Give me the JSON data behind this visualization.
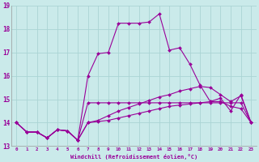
{
  "xlabel": "Windchill (Refroidissement éolien,°C)",
  "background_color": "#caeaea",
  "grid_color": "#aad4d4",
  "line_color": "#990099",
  "xlim": [
    -0.5,
    23.5
  ],
  "ylim": [
    13.0,
    19.0
  ],
  "xticks": [
    0,
    1,
    2,
    3,
    4,
    5,
    6,
    7,
    8,
    9,
    10,
    11,
    12,
    13,
    14,
    15,
    16,
    17,
    18,
    19,
    20,
    21,
    22,
    23
  ],
  "yticks": [
    13,
    14,
    15,
    16,
    17,
    18,
    19
  ],
  "series": [
    [
      14.0,
      13.6,
      13.6,
      13.35,
      13.7,
      13.65,
      13.25,
      14.85,
      14.85,
      14.85,
      14.85,
      14.85,
      14.85,
      14.85,
      14.85,
      14.85,
      14.85,
      14.85,
      14.85,
      14.85,
      14.85,
      14.85,
      14.85,
      14.0
    ],
    [
      14.0,
      13.6,
      13.6,
      13.35,
      13.7,
      13.65,
      13.25,
      14.0,
      14.05,
      14.1,
      14.2,
      14.3,
      14.4,
      14.5,
      14.6,
      14.7,
      14.75,
      14.8,
      14.85,
      14.9,
      14.9,
      14.7,
      14.6,
      14.0
    ],
    [
      14.0,
      13.6,
      13.6,
      13.35,
      13.7,
      13.65,
      13.25,
      14.0,
      14.1,
      14.3,
      14.5,
      14.65,
      14.8,
      14.95,
      15.1,
      15.2,
      15.35,
      15.45,
      15.55,
      15.5,
      15.2,
      14.9,
      15.15,
      14.0
    ],
    [
      14.0,
      13.6,
      13.6,
      13.35,
      13.7,
      13.65,
      13.25,
      16.0,
      16.95,
      17.0,
      18.25,
      18.25,
      18.25,
      18.3,
      18.65,
      17.1,
      17.2,
      16.5,
      15.6,
      14.9,
      15.05,
      14.5,
      15.2,
      14.0
    ]
  ]
}
